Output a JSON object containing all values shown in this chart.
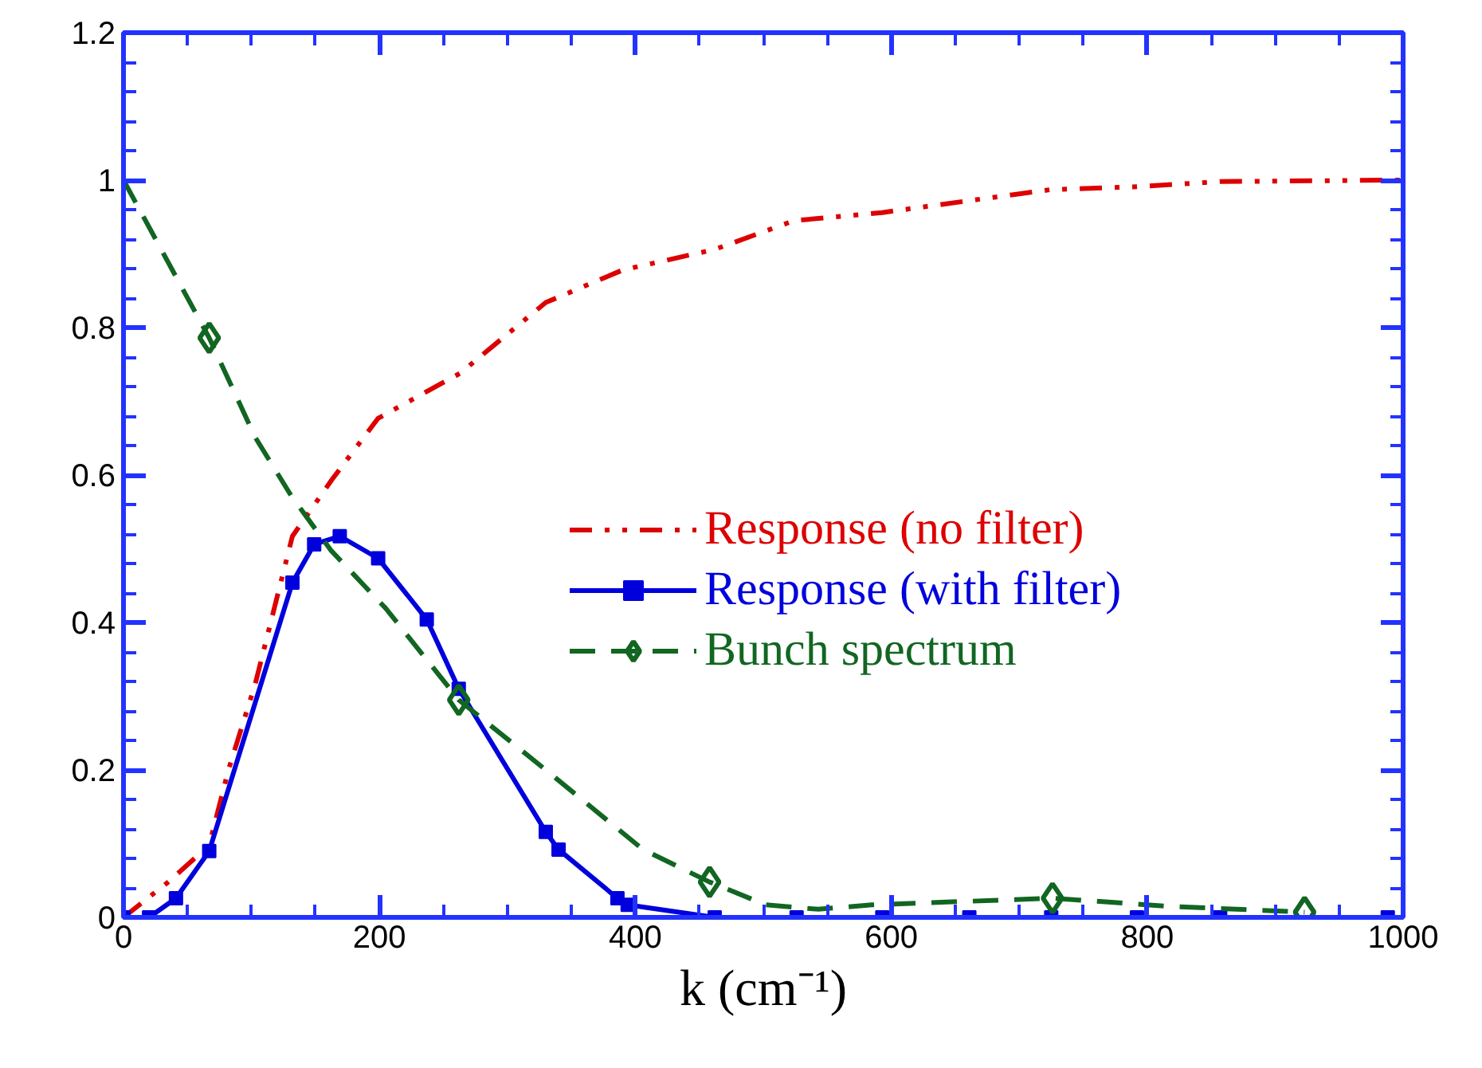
{
  "chart_data": {
    "type": "line",
    "xlabel": "k (cm⁻¹)",
    "xlim": [
      0,
      1000
    ],
    "ylim": [
      0,
      1.2
    ],
    "xticks": [
      0,
      200,
      400,
      600,
      800,
      1000
    ],
    "yticks": [
      0,
      0.2,
      0.4,
      0.6,
      0.8,
      1,
      1.2
    ],
    "grid": false,
    "legend": "right",
    "series": [
      {
        "name": "Response (no filter)",
        "color": "#dd0000",
        "line_style": "dashdot",
        "marker": "none",
        "x": [
          0,
          35,
          67,
          82,
          103,
          132,
          163,
          199,
          263,
          330,
          390,
          462,
          524,
          593,
          660,
          724,
          792,
          857,
          988,
          1000
        ],
        "values": [
          0,
          0.048,
          0.098,
          0.2,
          0.317,
          0.517,
          0.594,
          0.677,
          0.738,
          0.834,
          0.878,
          0.906,
          0.945,
          0.956,
          0.972,
          0.987,
          0.991,
          0.998,
          1.0,
          1.0
        ]
      },
      {
        "name": "Response (with filter)",
        "color": "#0000dd",
        "line_style": "solid",
        "marker": "square",
        "x": [
          0,
          20,
          41,
          67,
          132,
          149,
          169,
          199,
          237,
          262,
          330,
          340,
          386,
          394,
          462,
          526,
          593,
          661,
          725,
          792,
          857,
          988
        ],
        "values": [
          0,
          0,
          0.026,
          0.09,
          0.454,
          0.506,
          0.517,
          0.487,
          0.404,
          0.31,
          0.116,
          0.092,
          0.026,
          0.017,
          0,
          0,
          0,
          0,
          0,
          0,
          0,
          0
        ]
      },
      {
        "name": "Bunch spectrum",
        "color": "#116622",
        "line_style": "dashed",
        "marker": "none",
        "x": [
          0,
          67,
          103,
          131,
          162,
          205,
          262,
          330,
          406,
          458,
          502,
          543,
          585,
          726,
          817,
          923
        ],
        "values": [
          1.0,
          0.786,
          0.651,
          0.572,
          0.498,
          0.419,
          0.295,
          0.2,
          0.092,
          0.048,
          0.017,
          0.011,
          0.017,
          0.026,
          0.015,
          0.007
        ]
      },
      {
        "type": "scatter",
        "color": "#116622",
        "marker": "diamond",
        "x": [
          67,
          262,
          458,
          726,
          923
        ],
        "values": [
          0.786,
          0.295,
          0.048,
          0.026,
          0.007
        ]
      }
    ]
  }
}
